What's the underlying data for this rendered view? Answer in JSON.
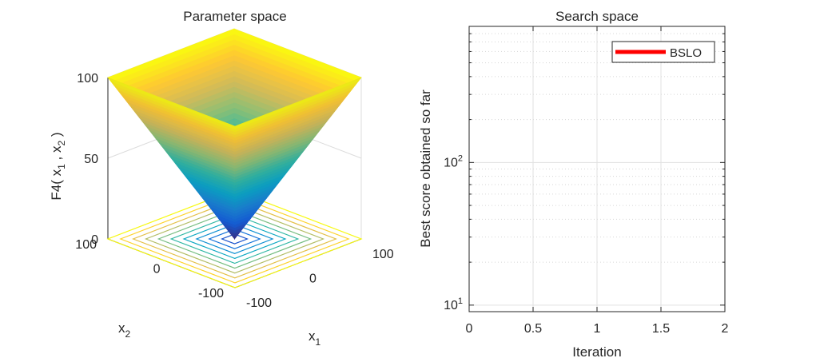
{
  "figure": {
    "left_title": "Parameter space",
    "right_title": "Search space"
  },
  "chart_data": [
    {
      "type": "surface3d",
      "title": "Parameter space",
      "function": "F4",
      "zlabel": {
        "main": "F4( x",
        "s1": "1",
        "mid": " , x",
        "s2": "2",
        "end": " )"
      },
      "xlabel": {
        "main": "x",
        "sub": "1"
      },
      "ylabel": {
        "main": "x",
        "sub": "2"
      },
      "x_ticks": [
        "-100",
        "0",
        "100"
      ],
      "y_ticks": [
        "-100",
        "0",
        "100"
      ],
      "z_ticks": [
        "0",
        "50",
        "100"
      ],
      "xlim": [
        -100,
        100
      ],
      "ylim": [
        -100,
        100
      ],
      "zlim": [
        0,
        100
      ],
      "surface": "max(|x1|, |x2|)",
      "contour_levels": [
        10,
        20,
        30,
        40,
        50,
        60,
        70,
        80,
        90,
        100
      ],
      "colormap": [
        "#352a87",
        "#0f5cdd",
        "#1481d6",
        "#06a4ca",
        "#2eb7a4",
        "#87bf77",
        "#d1bb59",
        "#fec832",
        "#f9fb0e"
      ]
    },
    {
      "type": "line",
      "title": "Search space",
      "xlabel": "Iteration",
      "ylabel": "Best score obtained so far",
      "xlim": [
        0,
        2
      ],
      "ylim": [
        9,
        900
      ],
      "yscale": "log",
      "x_ticks": [
        "0",
        "0.5",
        "1",
        "1.5",
        "2"
      ],
      "y_ticks": [
        {
          "base": "10",
          "exp": "1"
        },
        {
          "base": "10",
          "exp": "2"
        }
      ],
      "grid": true,
      "legend_position": "top-right",
      "series": [
        {
          "name": "BSLO",
          "color": "#ff0000",
          "x": [],
          "y": []
        }
      ]
    }
  ]
}
